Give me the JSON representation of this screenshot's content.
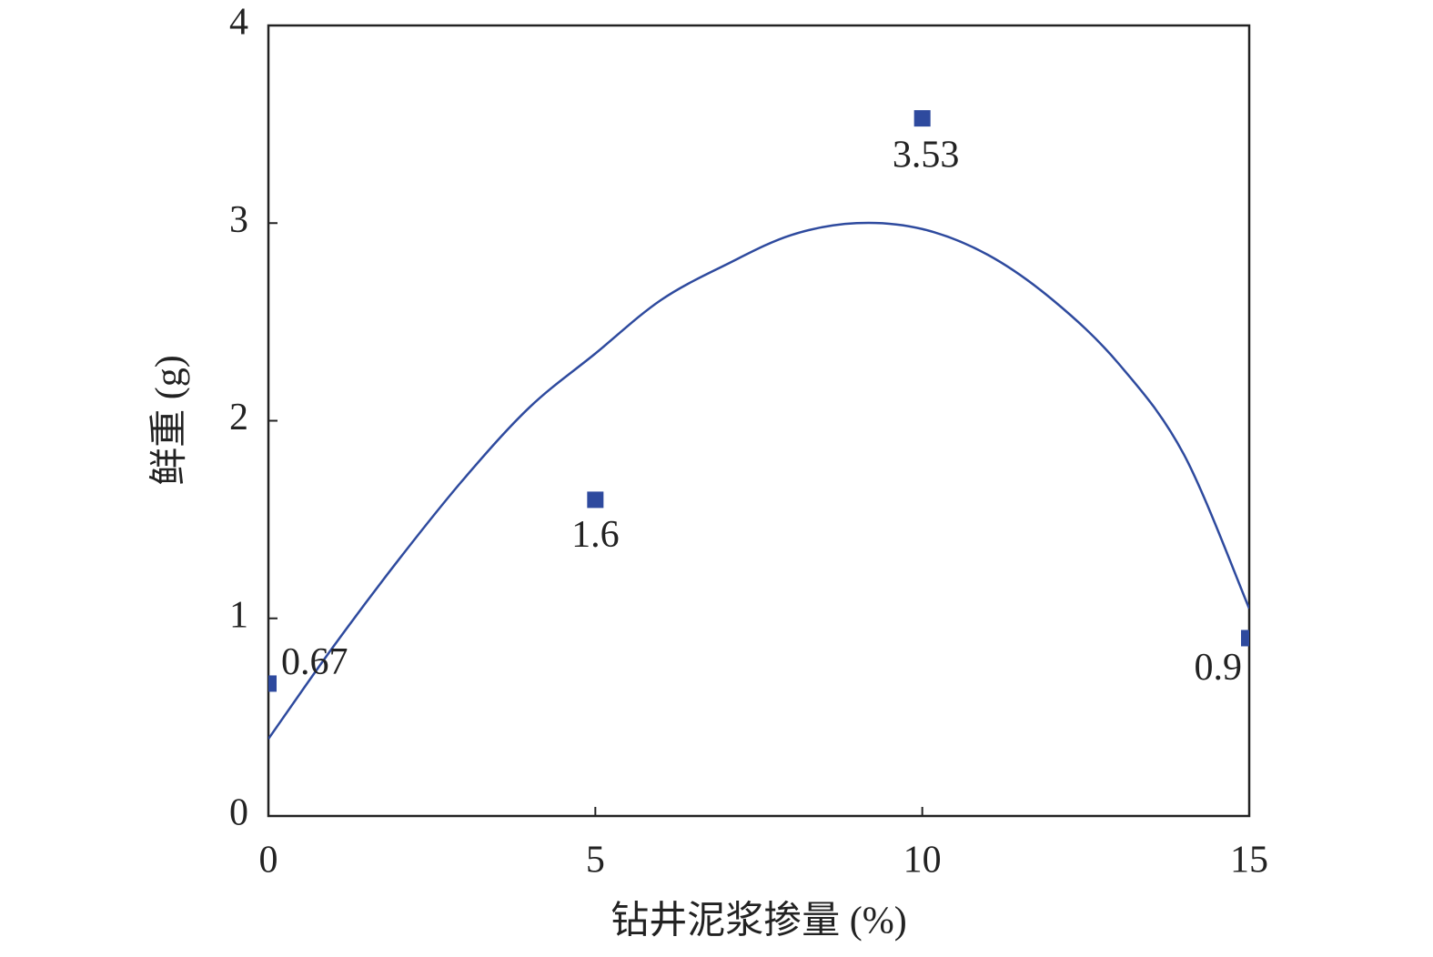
{
  "chart_data": {
    "type": "scatter",
    "xlabel": "钻井泥浆掺量 (%)",
    "ylabel": "鲜重 (g)",
    "xlim": [
      0,
      15
    ],
    "xticks": [
      0,
      5,
      10,
      15
    ],
    "ylim": [
      0,
      4
    ],
    "yticks": [
      0,
      1,
      2,
      3,
      4
    ],
    "series": [
      {
        "type": "scatter",
        "color": "#2e4a9e",
        "x": [
          0,
          5,
          10,
          15
        ],
        "values": [
          0.67,
          1.6,
          3.53,
          0.9
        ]
      },
      {
        "type": "line",
        "color": "#2e4a9e",
        "x": [
          0,
          1,
          2,
          3,
          4,
          5,
          6,
          7,
          8,
          9,
          10,
          11,
          12,
          13,
          14,
          15
        ],
        "values": [
          0.39,
          0.86,
          1.3,
          1.71,
          2.07,
          2.34,
          2.61,
          2.79,
          2.94,
          3.0,
          2.97,
          2.84,
          2.61,
          2.29,
          1.83,
          1.05
        ]
      }
    ]
  }
}
